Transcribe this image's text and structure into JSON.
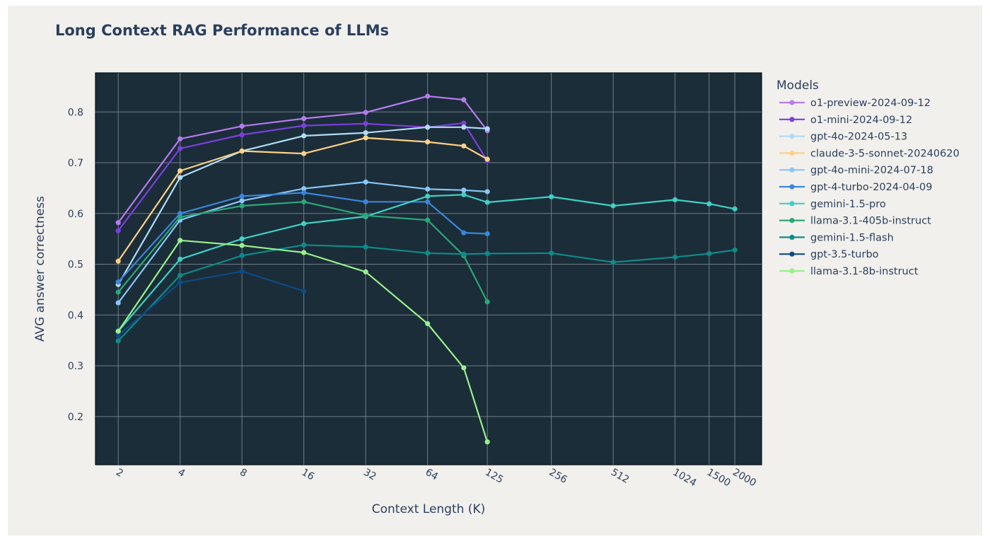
{
  "chart_data": {
    "type": "line",
    "title": "Long Context RAG Performance of LLMs",
    "xlabel": "Context Length (K)",
    "ylabel": "AVG answer correctness",
    "xscale": "log",
    "xlim": [
      1.55,
      2700
    ],
    "ylim": [
      0.105,
      0.877
    ],
    "xticks": [
      2,
      4,
      8,
      16,
      32,
      64,
      125,
      256,
      512,
      1024,
      1500,
      2000
    ],
    "xtick_labels": [
      "2",
      "4",
      "8",
      "16",
      "32",
      "64",
      "125",
      "256",
      "512",
      "1024",
      "1500",
      "2000"
    ],
    "yticks": [
      0.2,
      0.3,
      0.4,
      0.5,
      0.6,
      0.7,
      0.8
    ],
    "ytick_labels": [
      "0.2",
      "0.3",
      "0.4",
      "0.5",
      "0.6",
      "0.7",
      "0.8"
    ],
    "grid": true,
    "legend_title": "Models",
    "legend_position": "right",
    "series": [
      {
        "name": "o1-preview-2024-09-12",
        "color": "#b57bee",
        "x": [
          2,
          4,
          8,
          16,
          32,
          64,
          96,
          125
        ],
        "y": [
          0.582,
          0.747,
          0.772,
          0.787,
          0.799,
          0.831,
          0.824,
          0.763
        ]
      },
      {
        "name": "o1-mini-2024-09-12",
        "color": "#7b3fe0",
        "x": [
          2,
          4,
          8,
          16,
          32,
          64,
          96,
          125
        ],
        "y": [
          0.566,
          0.728,
          0.755,
          0.773,
          0.777,
          0.77,
          0.778,
          0.704
        ]
      },
      {
        "name": "gpt-4o-2024-05-13",
        "color": "#b0dcf7",
        "x": [
          2,
          4,
          8,
          16,
          32,
          64,
          96,
          125
        ],
        "y": [
          0.46,
          0.671,
          0.723,
          0.753,
          0.759,
          0.77,
          0.77,
          0.767
        ]
      },
      {
        "name": "claude-3-5-sonnet-20240620",
        "color": "#fdd186",
        "x": [
          2,
          4,
          8,
          16,
          32,
          64,
          96,
          125
        ],
        "y": [
          0.506,
          0.684,
          0.723,
          0.718,
          0.749,
          0.741,
          0.733,
          0.707
        ]
      },
      {
        "name": "gpt-4o-mini-2024-07-18",
        "color": "#8ac6f6",
        "x": [
          2,
          4,
          8,
          16,
          32,
          64,
          96,
          125
        ],
        "y": [
          0.424,
          0.587,
          0.625,
          0.649,
          0.662,
          0.648,
          0.646,
          0.643
        ]
      },
      {
        "name": "gpt-4-turbo-2024-04-09",
        "color": "#3a86dc",
        "x": [
          2,
          4,
          8,
          16,
          32,
          64,
          96,
          125
        ],
        "y": [
          0.465,
          0.6,
          0.634,
          0.641,
          0.623,
          0.623,
          0.562,
          0.56
        ]
      },
      {
        "name": "gemini-1.5-pro",
        "color": "#3fd0c6",
        "x": [
          2,
          4,
          8,
          16,
          32,
          64,
          96,
          125,
          256,
          512,
          1024,
          1500,
          2000
        ],
        "y": [
          0.368,
          0.51,
          0.55,
          0.58,
          0.594,
          0.634,
          0.637,
          0.622,
          0.633,
          0.615,
          0.627,
          0.619,
          0.609
        ]
      },
      {
        "name": "llama-3.1-405b-instruct",
        "color": "#2aa87b",
        "x": [
          2,
          4,
          8,
          16,
          32,
          64,
          96,
          125
        ],
        "y": [
          0.445,
          0.593,
          0.615,
          0.623,
          0.596,
          0.587,
          0.517,
          0.426
        ]
      },
      {
        "name": "gemini-1.5-flash",
        "color": "#0e8a8a",
        "x": [
          2,
          4,
          8,
          16,
          32,
          64,
          96,
          125,
          256,
          512,
          1024,
          1500,
          2000
        ],
        "y": [
          0.349,
          0.478,
          0.517,
          0.538,
          0.534,
          0.522,
          0.52,
          0.521,
          0.522,
          0.504,
          0.514,
          0.521,
          0.528
        ]
      },
      {
        "name": "gpt-3.5-turbo",
        "color": "#0d4a85",
        "x": [
          2,
          4,
          8,
          16
        ],
        "y": [
          0.36,
          0.464,
          0.486,
          0.447
        ]
      },
      {
        "name": "llama-3.1-8b-instruct",
        "color": "#98f08c",
        "x": [
          2,
          4,
          8,
          16,
          32,
          64,
          96,
          125
        ],
        "y": [
          0.368,
          0.547,
          0.537,
          0.523,
          0.485,
          0.383,
          0.296,
          0.15
        ]
      }
    ]
  }
}
